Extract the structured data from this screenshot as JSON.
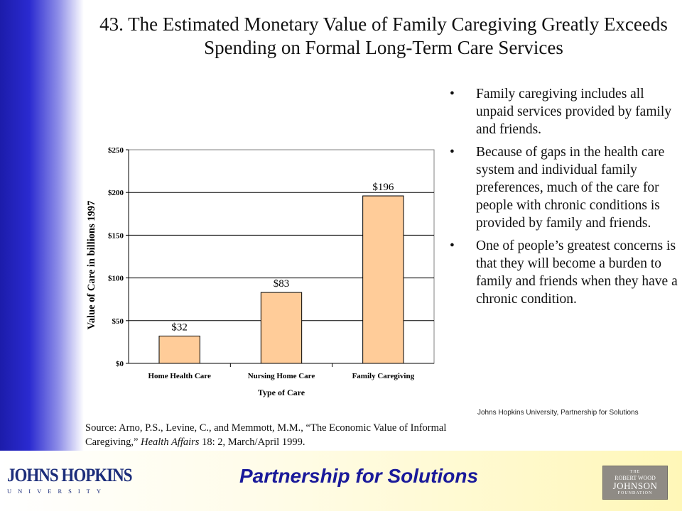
{
  "slide": {
    "title": "43. The Estimated Monetary Value of Family Caregiving Greatly Exceeds Spending on Formal Long-Term Care Services",
    "bullets": [
      "Family caregiving includes all unpaid services provided by family and friends.",
      "Because of gaps in the health care system and individual family preferences, much of the care for people with chronic conditions is provided by family and friends.",
      "One of people’s greatest concerns is that they will become a burden to family and friends when they have a chronic condition."
    ],
    "credit": "Johns Hopkins University, Partnership for Solutions",
    "source": {
      "prefix": "Source: Arno, P.S., Levine, C., and Memmott, M.M., “The Economic Value of Informal Caregiving,” ",
      "journal": "Health Affairs",
      "suffix": " 18: 2, March/April 1999."
    },
    "footer_title": "Partnership for Solutions",
    "logos": {
      "jhu_name": "JOHNS HOPKINS",
      "jhu_sub": "UNIVERSITY",
      "rwj_line1": "THE",
      "rwj_line2": "ROBERT WOOD",
      "rwj_line3": "JOHNSON",
      "rwj_line4": "FOUNDATION"
    }
  },
  "chart_data": {
    "type": "bar",
    "categories": [
      "Home Health Care",
      "Nursing Home Care",
      "Family Caregiving"
    ],
    "values": [
      32,
      83,
      196
    ],
    "data_labels": [
      "$32",
      "$83",
      "$196"
    ],
    "xlabel": "Type of Care",
    "ylabel": "Value of Care in billions 1997",
    "ylim": [
      0,
      250
    ],
    "yticks": [
      0,
      50,
      100,
      150,
      200,
      250
    ],
    "ytick_labels": [
      "$0",
      "$50",
      "$100",
      "$150",
      "$200",
      "$250"
    ],
    "grid": true,
    "bar_color": "#ffcc99",
    "bar_edge_color": "#000000",
    "legend": "none"
  }
}
